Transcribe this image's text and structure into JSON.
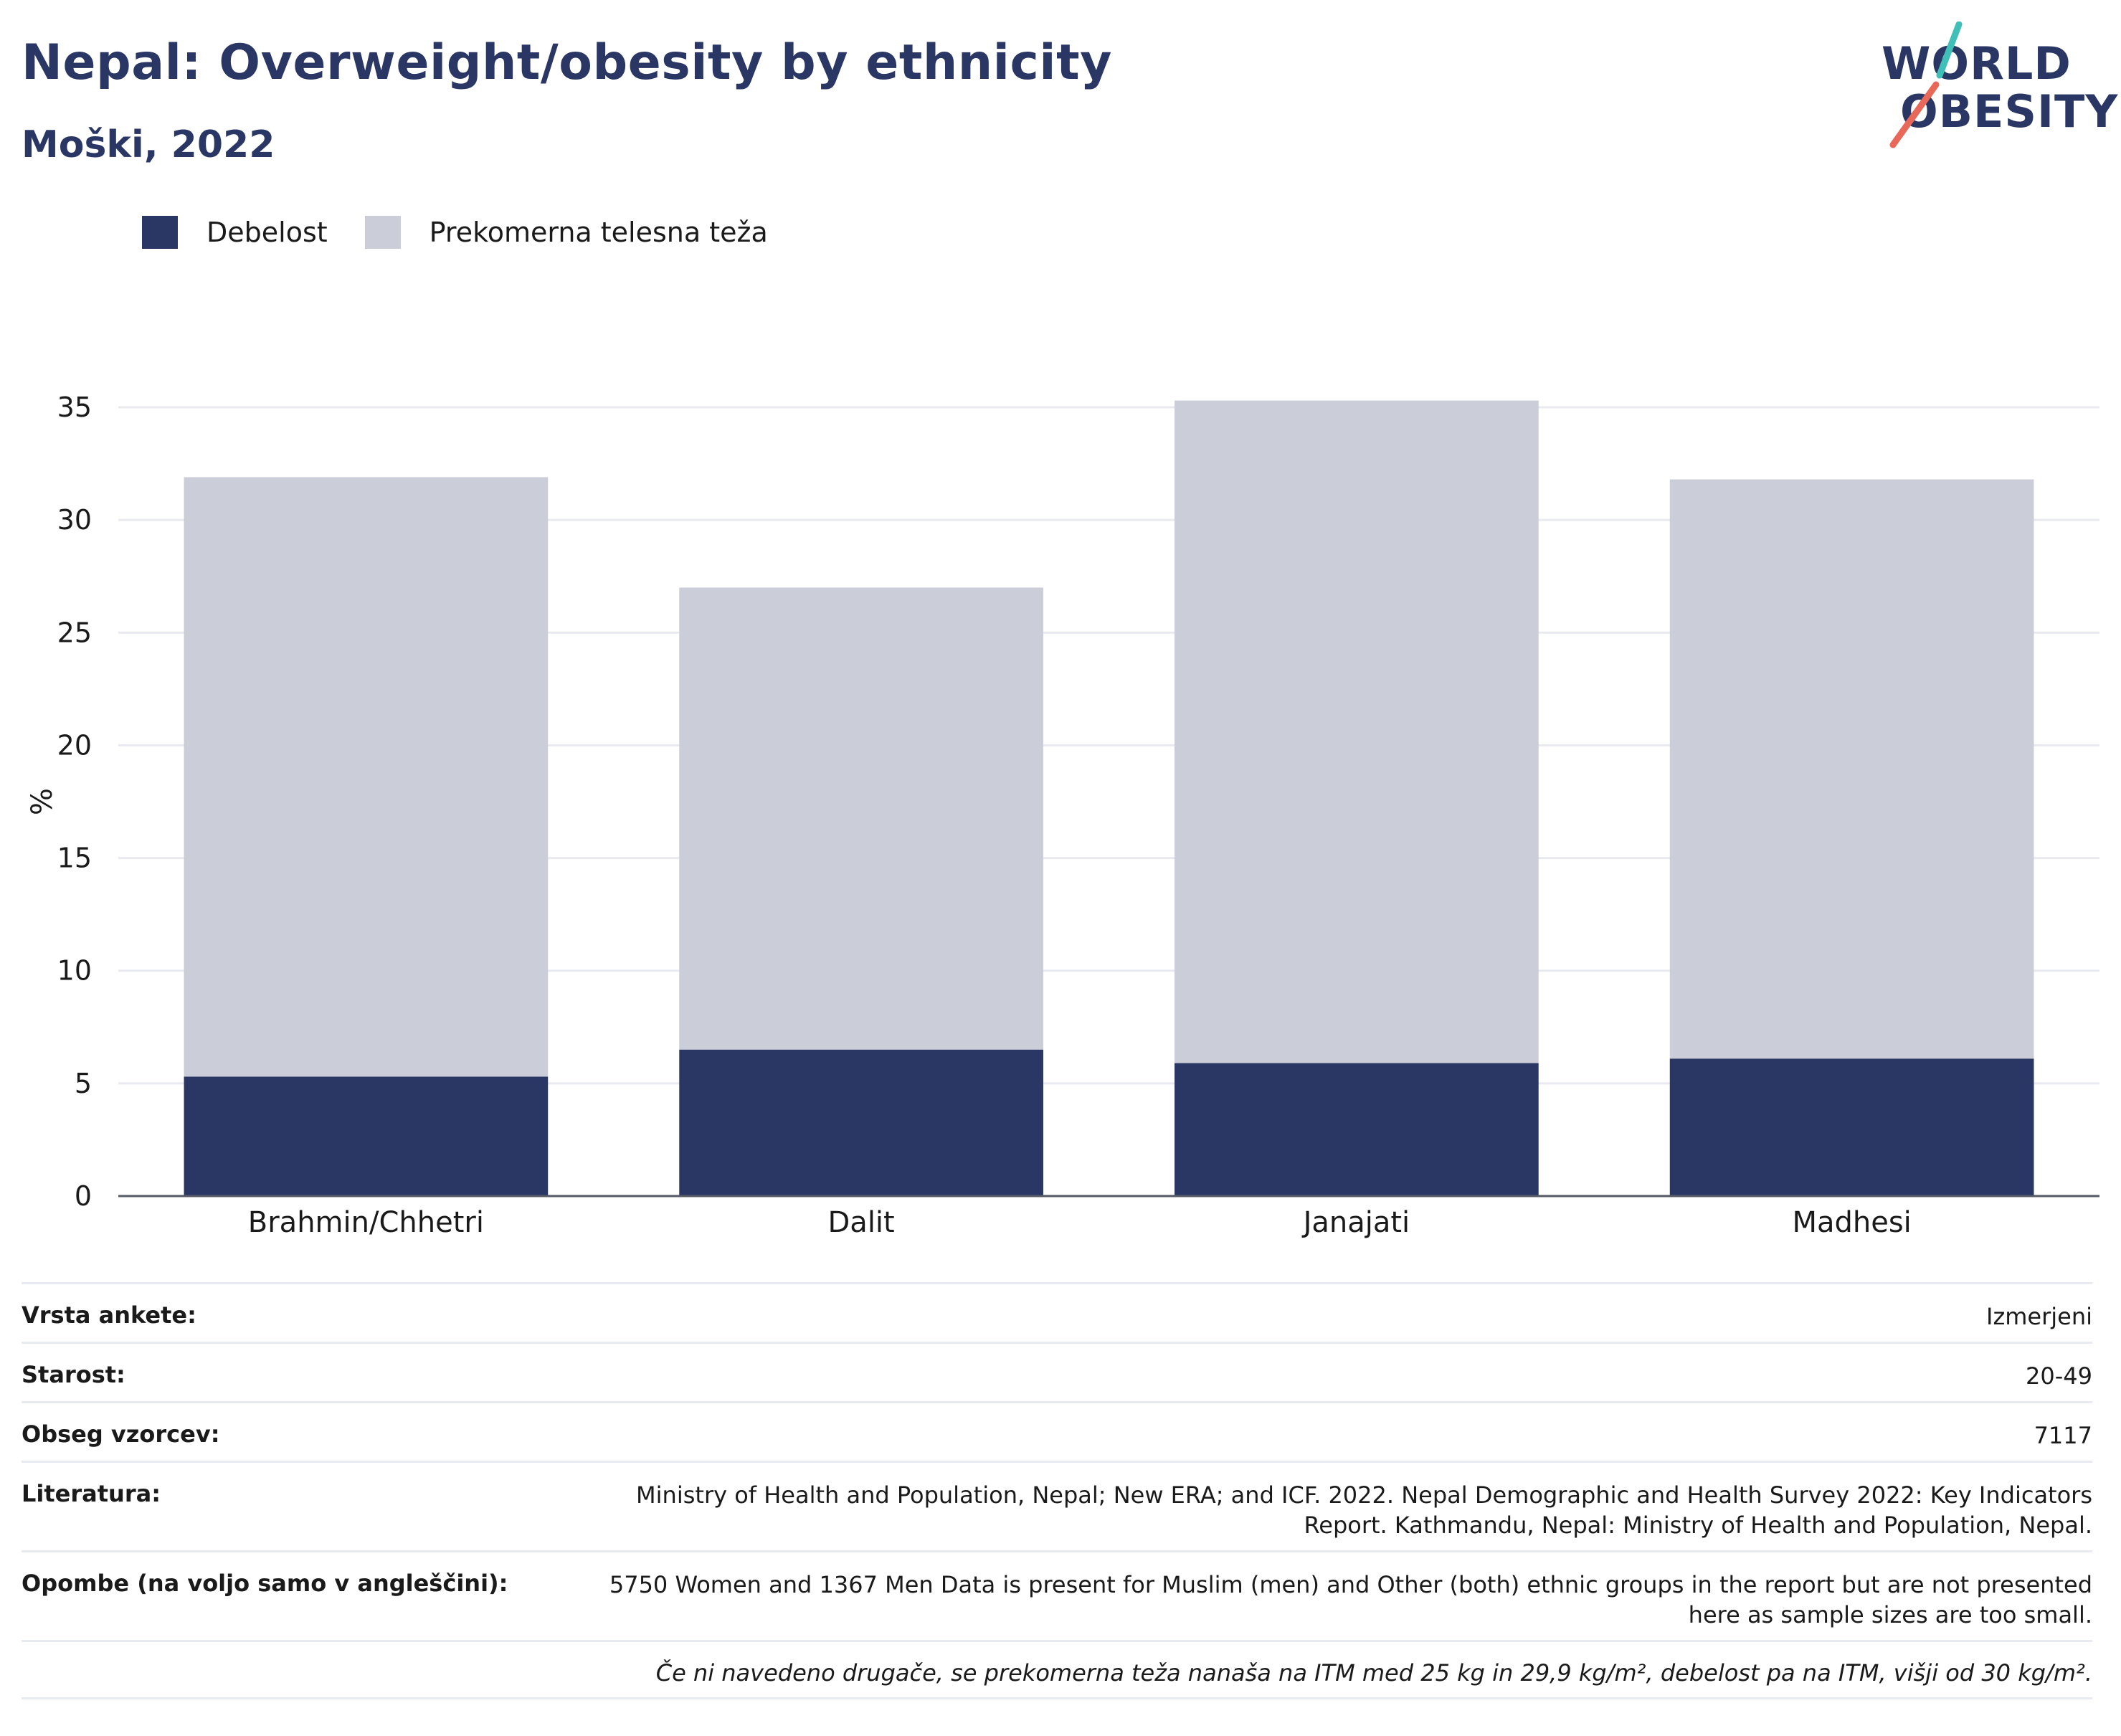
{
  "header": {
    "title": "Nepal: Overweight/obesity by ethnicity",
    "subtitle": "Moški, 2022"
  },
  "logo": {
    "line1": "WORLD",
    "line2": "OBESITY",
    "accent_colors": [
      "#3fbfb7",
      "#e8685a"
    ]
  },
  "legend": [
    {
      "label": "Debelost",
      "color": "#2a3764"
    },
    {
      "label": "Prekomerna telesna teža",
      "color": "#cbcdd9"
    }
  ],
  "chart_data": {
    "type": "bar",
    "stacked": true,
    "categories": [
      "Brahmin/Chhetri",
      "Dalit",
      "Janajati",
      "Madhesi"
    ],
    "series": [
      {
        "name": "Debelost",
        "values": [
          5.3,
          6.5,
          5.9,
          6.1
        ],
        "color": "#2a3764"
      },
      {
        "name": "Prekomerna telesna teža",
        "values": [
          26.6,
          20.5,
          29.4,
          25.7
        ],
        "color": "#cbcdd9"
      }
    ],
    "ylabel": "%",
    "ylim": [
      0,
      35
    ],
    "yticks": [
      0,
      5,
      10,
      15,
      20,
      25,
      30,
      35
    ],
    "grid": true
  },
  "meta": {
    "rows": [
      {
        "key": "Vrsta ankete:",
        "value": "Izmerjeni"
      },
      {
        "key": "Starost:",
        "value": "20-49"
      },
      {
        "key": "Obseg vzorcev:",
        "value": "7117"
      },
      {
        "key": "Literatura:",
        "value": "Ministry of Health and Population, Nepal; New ERA; and ICF. 2022. Nepal Demographic and Health Survey 2022: Key Indicators Report. Kathmandu, Nepal: Ministry of Health and Population, Nepal."
      },
      {
        "key": "Opombe (na voljo samo v angleščini):",
        "value": "5750 Women and 1367 Men Data is present for Muslim (men) and Other (both) ethnic groups in the report but are not presented here as sample sizes are too small."
      }
    ],
    "footnote": "Če ni navedeno drugače, se prekomerna teža nanaša na ITM med 25 kg in 29,9 kg/m², debelost pa na ITM, višji od 30 kg/m²."
  }
}
